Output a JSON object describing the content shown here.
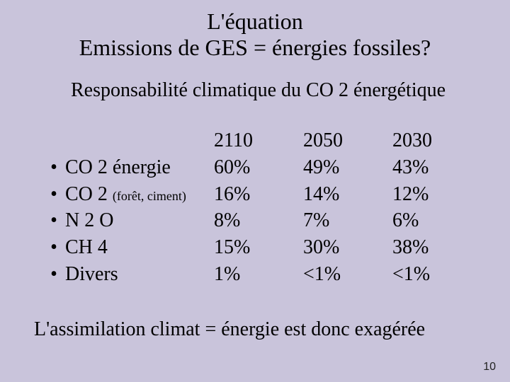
{
  "background_color": "#c9c4db",
  "text_color": "#000000",
  "title_line1": "L'équation",
  "title_line2": "Emissions de GES = énergies fossiles?",
  "subtitle": "Responsabilité climatique du CO 2 énergétique",
  "table": {
    "type": "table",
    "label_fontsize": 28,
    "small_fontsize": 18,
    "col_header": [
      "2110",
      "2050",
      "2030"
    ],
    "rows": [
      {
        "bullet": "•",
        "label_main": "CO 2 énergie",
        "label_small": "",
        "cells": [
          "60%",
          "49%",
          "43%"
        ]
      },
      {
        "bullet": "•",
        "label_main": "CO 2 ",
        "label_small": "(forêt, ciment)",
        "cells": [
          "16%",
          "14%",
          "12%"
        ]
      },
      {
        "bullet": "•",
        "label_main": "N 2 O",
        "label_small": "",
        "cells": [
          "8%",
          "7%",
          "6%"
        ]
      },
      {
        "bullet": "•",
        "label_main": "CH 4",
        "label_small": "",
        "cells": [
          "15%",
          "30%",
          "38%"
        ]
      },
      {
        "bullet": "•",
        "label_main": "Divers",
        "label_small": "",
        "cells": [
          "1%",
          "<1%",
          "<1%"
        ]
      }
    ]
  },
  "footer": "L'assimilation climat = énergie est donc exagérée",
  "page_number": "10"
}
